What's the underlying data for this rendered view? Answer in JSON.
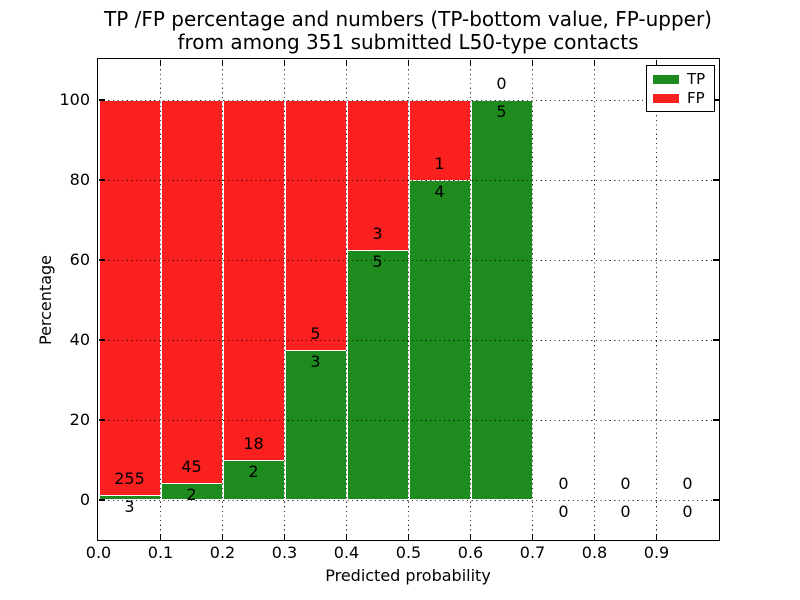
{
  "figure": {
    "title_line1": "TP /FP percentage and numbers (TP-bottom value, FP-upper)",
    "title_line2": "from among 351 submitted L50-type contacts",
    "xlabel": "Predicted probability",
    "ylabel": "Percentage"
  },
  "legend": {
    "items": [
      {
        "label": "TP",
        "color": "#1e8b1e"
      },
      {
        "label": "FP",
        "color": "#fb2020"
      }
    ]
  },
  "chart_data": {
    "type": "bar",
    "stacked": true,
    "title": "TP /FP percentage and numbers (TP-bottom value, FP-upper) from among 351 submitted L50-type contacts",
    "xlabel": "Predicted probability",
    "ylabel": "Percentage",
    "total_contacts": 351,
    "bin_starts": [
      0.0,
      0.1,
      0.2,
      0.3,
      0.4,
      0.5,
      0.6,
      0.7,
      0.8,
      0.9
    ],
    "bin_width": 0.1,
    "xticks": [
      0.0,
      0.1,
      0.2,
      0.3,
      0.4,
      0.5,
      0.6,
      0.7,
      0.8,
      0.9
    ],
    "xtick_labels": [
      "0.0",
      "0.1",
      "0.2",
      "0.3",
      "0.4",
      "0.5",
      "0.6",
      "0.7",
      "0.8",
      "0.9"
    ],
    "yticks": [
      0,
      20,
      40,
      60,
      80,
      100
    ],
    "ytick_labels": [
      "0",
      "20",
      "40",
      "60",
      "80",
      "100"
    ],
    "xlim": [
      0.0,
      1.0
    ],
    "ylim": [
      -10,
      110
    ],
    "grid": "dotted",
    "legend_position": "upper right",
    "series": [
      {
        "name": "TP",
        "color": "#1e8b1e",
        "counts": [
          3,
          2,
          2,
          3,
          5,
          4,
          5,
          0,
          0,
          0
        ],
        "percent": [
          1.16,
          4.26,
          10.0,
          37.5,
          62.5,
          80.0,
          100.0,
          null,
          null,
          null
        ]
      },
      {
        "name": "FP",
        "color": "#fb2020",
        "counts": [
          255,
          45,
          18,
          5,
          3,
          1,
          0,
          0,
          0,
          0
        ],
        "percent": [
          98.84,
          95.74,
          90.0,
          62.5,
          37.5,
          20.0,
          0.0,
          null,
          null,
          null
        ]
      }
    ]
  }
}
